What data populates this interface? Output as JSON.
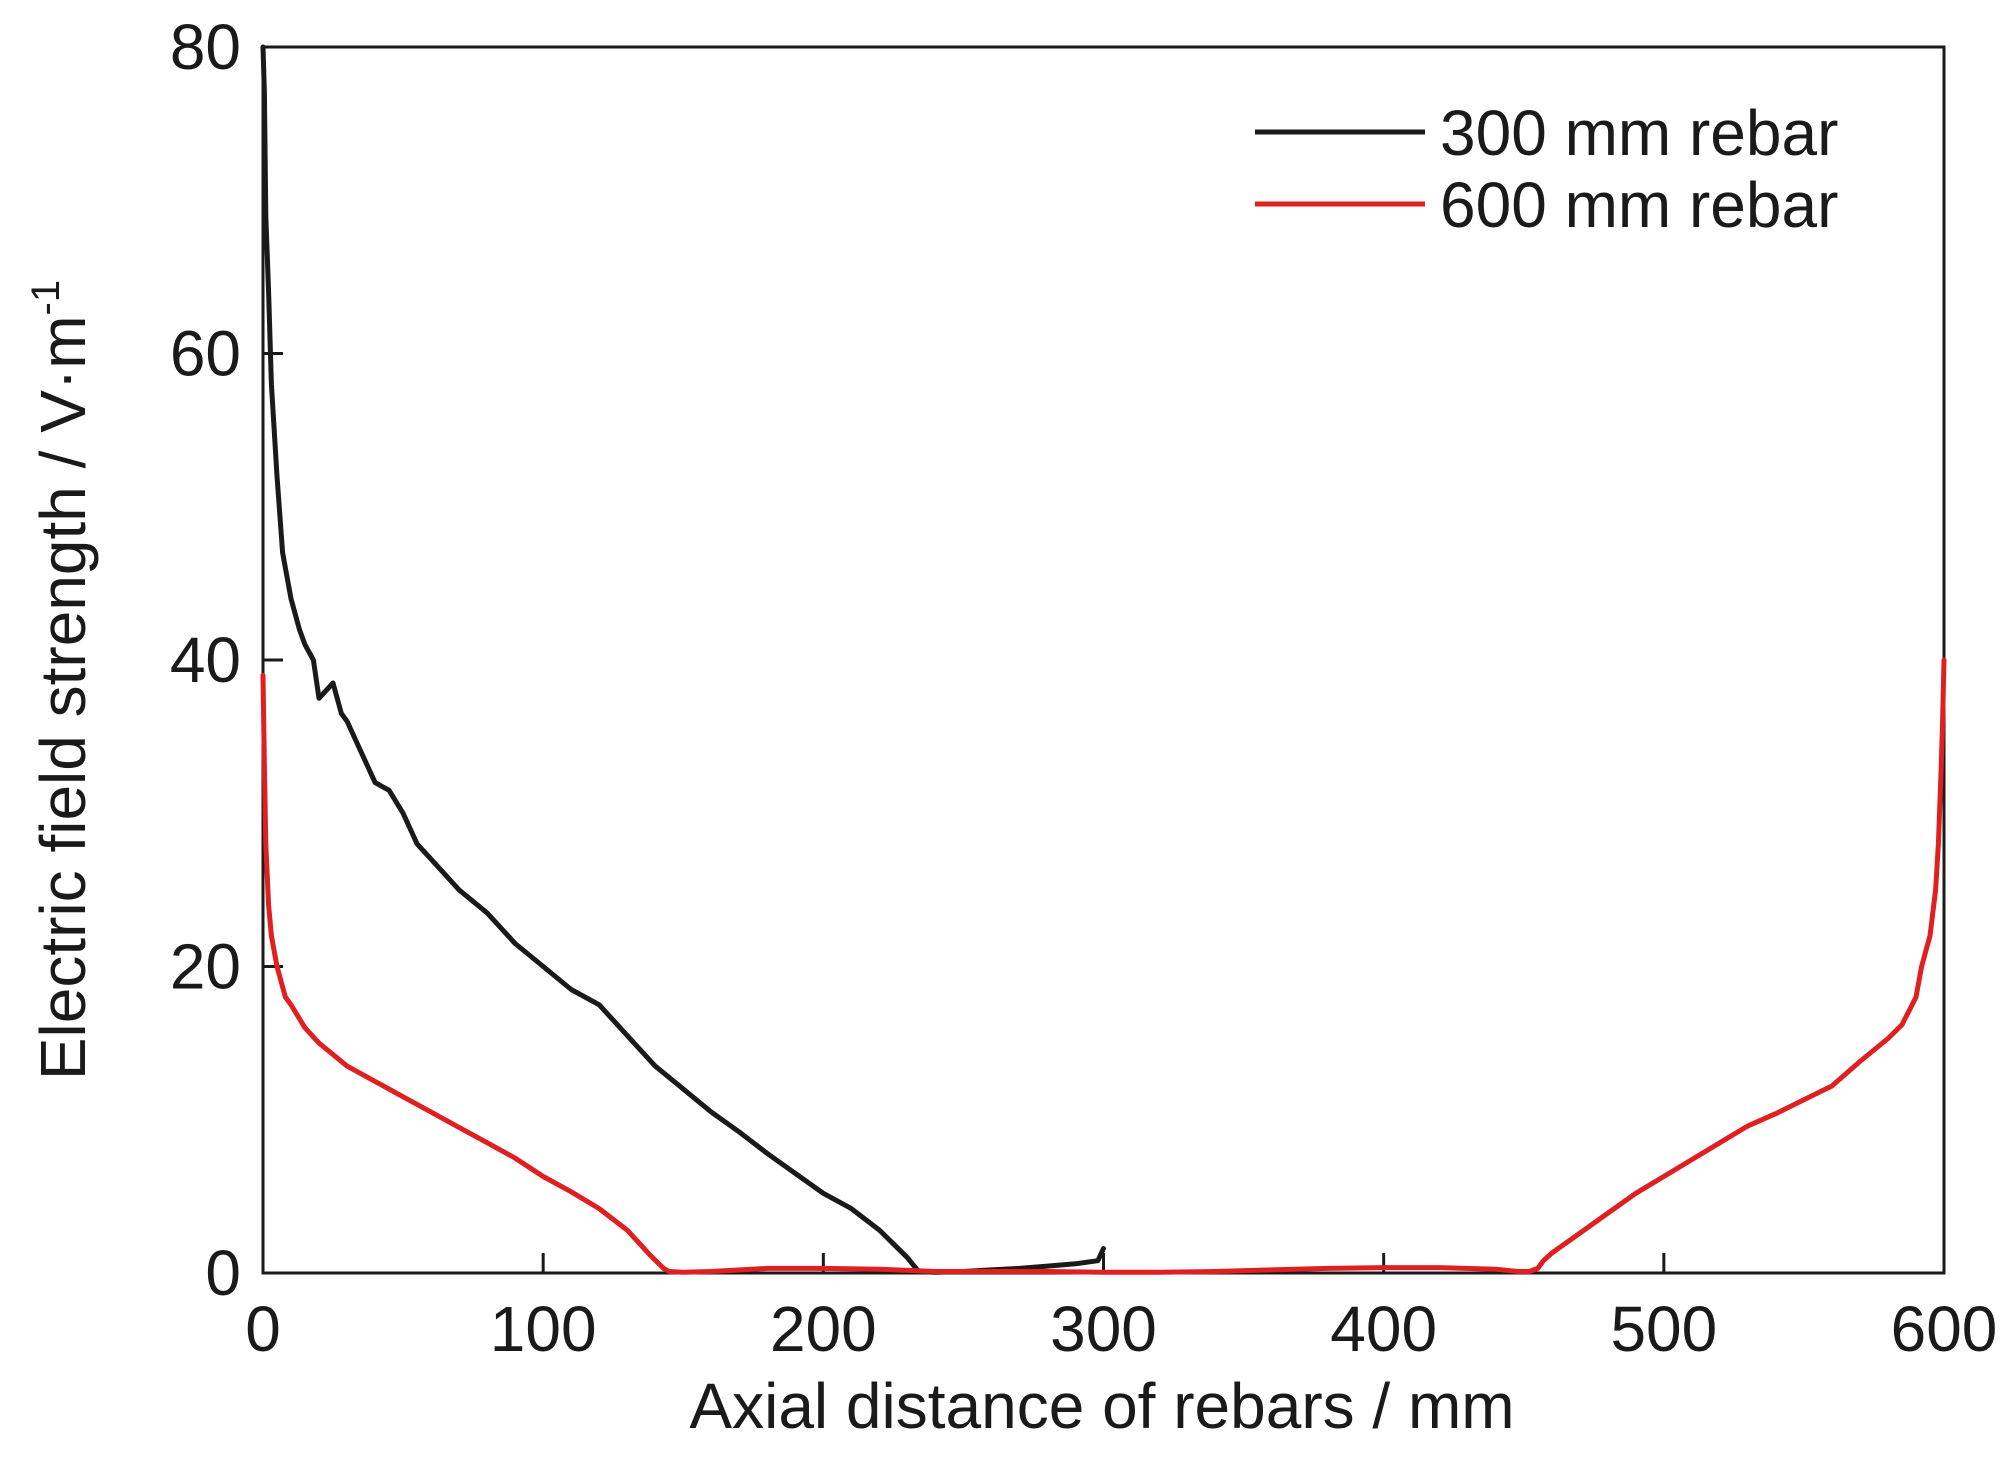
{
  "chart_data": {
    "type": "line",
    "xlabel": "Axial distance of rebars / mm",
    "ylabel_main": "Electric field strength / V·m",
    "ylabel_sup": "-1",
    "xlim": [
      0,
      600
    ],
    "ylim": [
      0,
      80
    ],
    "x_ticks": [
      "0",
      "100",
      "200",
      "300",
      "400",
      "500",
      "600"
    ],
    "y_ticks": [
      "0",
      "20",
      "40",
      "60",
      "80"
    ],
    "x_tick_values": [
      0,
      100,
      200,
      300,
      400,
      500,
      600
    ],
    "y_tick_values": [
      0,
      20,
      40,
      60,
      80
    ],
    "grid": false,
    "legend_position": "top-right",
    "series": [
      {
        "name": "300 mm rebar",
        "color": "#1a1a1a",
        "x": [
          0,
          0.5,
          1,
          2,
          3,
          5,
          7,
          10,
          13,
          15,
          18,
          20,
          25,
          28,
          30,
          35,
          40,
          45,
          50,
          55,
          60,
          70,
          80,
          90,
          100,
          110,
          120,
          130,
          140,
          150,
          160,
          170,
          180,
          190,
          200,
          210,
          220,
          230,
          234,
          240,
          250,
          260,
          270,
          280,
          290,
          298,
          300
        ],
        "y": [
          80,
          77,
          69,
          64,
          58,
          52,
          47,
          44,
          42,
          41,
          40,
          37.5,
          38.5,
          36.5,
          36,
          34,
          32,
          31.5,
          30,
          28,
          27,
          25,
          23.5,
          21.5,
          20,
          18.5,
          17.5,
          15.5,
          13.5,
          12,
          10.5,
          9.2,
          7.8,
          6.5,
          5.2,
          4.2,
          2.8,
          1.0,
          0.1,
          0.05,
          0.1,
          0.2,
          0.3,
          0.45,
          0.6,
          0.8,
          1.6
        ]
      },
      {
        "name": "600 mm rebar",
        "color": "#e02020",
        "x": [
          0,
          0.5,
          1,
          2,
          3,
          5,
          8,
          10,
          15,
          20,
          30,
          40,
          50,
          60,
          70,
          80,
          90,
          100,
          110,
          120,
          130,
          138,
          143,
          145,
          150,
          160,
          180,
          200,
          220,
          240,
          260,
          280,
          300,
          320,
          340,
          360,
          380,
          400,
          420,
          440,
          448,
          452,
          455,
          457,
          460,
          470,
          480,
          490,
          500,
          510,
          520,
          530,
          540,
          550,
          560,
          570,
          580,
          585,
          590,
          592,
          595,
          597,
          598,
          599,
          599.5,
          600
        ],
        "y": [
          39,
          33,
          28,
          24,
          22,
          20,
          18,
          17.5,
          16,
          15,
          13.5,
          12.5,
          11.5,
          10.5,
          9.5,
          8.5,
          7.5,
          6.3,
          5.3,
          4.2,
          2.8,
          1.2,
          0.3,
          0.1,
          0.05,
          0.1,
          0.3,
          0.3,
          0.25,
          0.1,
          0.1,
          0.1,
          0.05,
          0.05,
          0.1,
          0.2,
          0.3,
          0.35,
          0.35,
          0.25,
          0.1,
          0.1,
          0.3,
          0.8,
          1.3,
          2.6,
          3.9,
          5.2,
          6.3,
          7.4,
          8.5,
          9.6,
          10.4,
          11.3,
          12.2,
          13.8,
          15.3,
          16.2,
          18,
          20,
          22,
          25,
          28,
          33,
          36,
          40
        ]
      }
    ]
  }
}
